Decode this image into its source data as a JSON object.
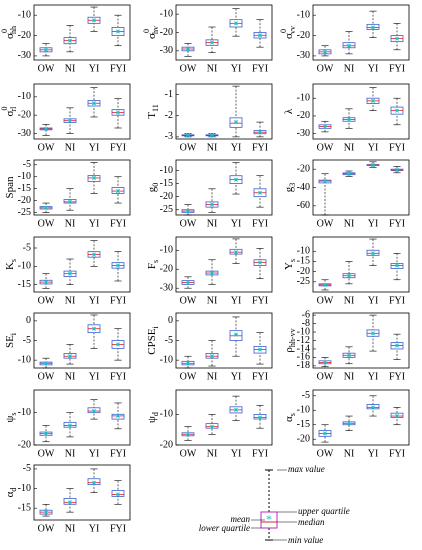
{
  "chart_data": [
    {
      "type": "box",
      "ylabel": {
        "base": "σ",
        "sup": "0",
        "sub": "hh"
      },
      "categories": [
        "OW",
        "NI",
        "YI",
        "FYI"
      ],
      "ylim": [
        -32,
        -5
      ],
      "yticks": [
        -30,
        -20,
        -10
      ],
      "min": [
        -30,
        -28,
        -18,
        -25
      ],
      "q1": [
        -28,
        -24,
        -14,
        -20
      ],
      "median": [
        -27,
        -22.5,
        -12.5,
        -18
      ],
      "q3": [
        -26,
        -21,
        -11,
        -16
      ],
      "max": [
        -24,
        -15,
        -6,
        -10
      ],
      "mean": [
        -27,
        -22.5,
        -12.5,
        -18
      ]
    },
    {
      "type": "box",
      "ylabel": {
        "base": "σ",
        "sup": "0",
        "sub": "hv"
      },
      "categories": [
        "OW",
        "NI",
        "YI",
        "FYI"
      ],
      "ylim": [
        -35,
        -5
      ],
      "yticks": [
        -30,
        -20,
        -10
      ],
      "min": [
        -33,
        -31,
        -22,
        -28
      ],
      "q1": [
        -30,
        -27,
        -17,
        -23
      ],
      "median": [
        -29,
        -25.5,
        -15,
        -21.5
      ],
      "q3": [
        -28,
        -24,
        -13,
        -20
      ],
      "max": [
        -26,
        -17,
        -7,
        -13
      ],
      "mean": [
        -29,
        -25.5,
        -15,
        -21.5
      ]
    },
    {
      "type": "box",
      "ylabel": {
        "base": "σ",
        "sup": "0",
        "sub": "vv"
      },
      "categories": [
        "OW",
        "NI",
        "YI",
        "FYI"
      ],
      "ylim": [
        -32,
        -5
      ],
      "yticks": [
        -30,
        -20,
        -10
      ],
      "min": [
        -30,
        -29,
        -21,
        -27
      ],
      "q1": [
        -29,
        -26,
        -17,
        -23
      ],
      "median": [
        -28,
        -25,
        -16,
        -21.5
      ],
      "q3": [
        -27,
        -23.5,
        -14.5,
        -20
      ],
      "max": [
        -25,
        -18,
        -8,
        -14
      ],
      "mean": [
        -28,
        -25,
        -16,
        -21.5
      ]
    },
    {
      "type": "box",
      "ylabel": {
        "base": "σ",
        "sup": "0",
        "sub": "rl"
      },
      "categories": [
        "OW",
        "NI",
        "YI",
        "FYI"
      ],
      "ylim": [
        -33,
        -3
      ],
      "yticks": [
        -30,
        -20,
        -10
      ],
      "min": [
        -31,
        -30,
        -21,
        -27
      ],
      "q1": [
        -28,
        -24,
        -15,
        -20
      ],
      "median": [
        -27.5,
        -23,
        -13.5,
        -18.5
      ],
      "q3": [
        -27,
        -22,
        -12,
        -17
      ],
      "max": [
        -25,
        -16,
        -5,
        -11
      ],
      "mean": [
        -27.5,
        -23,
        -13.5,
        -18.5
      ]
    },
    {
      "type": "box",
      "ylabel": {
        "base": "T",
        "sub": "11"
      },
      "categories": [
        "OW",
        "NI",
        "YI",
        "FYI"
      ],
      "ylim": [
        -3.1,
        -0.5
      ],
      "yticks": [
        -3,
        -2,
        -1
      ],
      "min": [
        -3,
        -3,
        -3,
        -3
      ],
      "q1": [
        -2.95,
        -2.95,
        -2.55,
        -2.85
      ],
      "median": [
        -2.93,
        -2.93,
        -2.35,
        -2.78
      ],
      "q3": [
        -2.9,
        -2.9,
        -2.1,
        -2.7
      ],
      "max": [
        -2.85,
        -2.85,
        -0.6,
        -2.3
      ],
      "mean": [
        -2.93,
        -2.93,
        -2.3,
        -2.78
      ]
    },
    {
      "type": "box",
      "ylabel": {
        "base": "λ"
      },
      "categories": [
        "OW",
        "NI",
        "YI",
        "FYI"
      ],
      "ylim": [
        -33,
        -2
      ],
      "yticks": [
        -30,
        -20,
        -10
      ],
      "min": [
        -29,
        -27,
        -17,
        -25
      ],
      "q1": [
        -27,
        -23,
        -13,
        -19
      ],
      "median": [
        -26,
        -22,
        -11.5,
        -17
      ],
      "q3": [
        -25,
        -21,
        -10,
        -15
      ],
      "max": [
        -23,
        -16,
        -4,
        -10
      ],
      "mean": [
        -26,
        -22,
        -11.5,
        -17
      ]
    },
    {
      "type": "box",
      "ylabel": {
        "base": "Span"
      },
      "categories": [
        "OW",
        "NI",
        "YI",
        "FYI"
      ],
      "ylim": [
        -26,
        -3
      ],
      "yticks": [
        -25,
        -20,
        -15,
        -10,
        -5
      ],
      "min": [
        -25,
        -24,
        -17,
        -21
      ],
      "q1": [
        -23.5,
        -21,
        -12,
        -17
      ],
      "median": [
        -23,
        -20.5,
        -10.5,
        -16
      ],
      "q3": [
        -22.5,
        -19.5,
        -9.5,
        -14.5
      ],
      "max": [
        -21,
        -15,
        -4,
        -10
      ],
      "mean": [
        -23,
        -20.5,
        -10.5,
        -16
      ]
    },
    {
      "type": "box",
      "ylabel": {
        "base": "g",
        "sub": "0"
      },
      "categories": [
        "OW",
        "NI",
        "YI",
        "FYI"
      ],
      "ylim": [
        -27,
        -6
      ],
      "yticks": [
        -25,
        -20,
        -15,
        -10
      ],
      "min": [
        -27,
        -26,
        -19,
        -24
      ],
      "q1": [
        -26,
        -24,
        -15,
        -20
      ],
      "median": [
        -25.5,
        -23,
        -13.5,
        -18.5
      ],
      "q3": [
        -25,
        -22,
        -12,
        -17
      ],
      "max": [
        -23,
        -17,
        -7,
        -12
      ],
      "mean": [
        -25.5,
        -23,
        -13.5,
        -18.5
      ]
    },
    {
      "type": "box",
      "ylabel": {
        "base": "g",
        "sub": "3"
      },
      "categories": [
        "OW",
        "NI",
        "YI",
        "FYI"
      ],
      "ylim": [
        -70,
        -10
      ],
      "yticks": [
        -60,
        -40,
        -20
      ],
      "min": [
        -70,
        -28,
        -18,
        -24
      ],
      "q1": [
        -35,
        -26,
        -16,
        -21.5
      ],
      "median": [
        -33,
        -25,
        -15.5,
        -21
      ],
      "q3": [
        -32,
        -24,
        -15,
        -20
      ],
      "max": [
        -25,
        -22,
        -12,
        -17
      ],
      "mean": [
        -33,
        -25,
        -15.5,
        -21
      ]
    },
    {
      "type": "box",
      "ylabel": {
        "base": "K",
        "sub": "s"
      },
      "categories": [
        "OW",
        "NI",
        "YI",
        "FYI"
      ],
      "ylim": [
        -17,
        -2
      ],
      "yticks": [
        -15,
        -10,
        -5
      ],
      "min": [
        -16,
        -15,
        -10,
        -14
      ],
      "q1": [
        -14.8,
        -12.8,
        -7.5,
        -10.5
      ],
      "median": [
        -14.3,
        -12,
        -6.8,
        -9.8
      ],
      "q3": [
        -13.8,
        -11.3,
        -6,
        -9
      ],
      "max": [
        -12,
        -8,
        -3,
        -6
      ],
      "mean": [
        -14.3,
        -12,
        -6.8,
        -9.8
      ]
    },
    {
      "type": "box",
      "ylabel": {
        "base": "F",
        "sub": "s"
      },
      "categories": [
        "OW",
        "NI",
        "YI",
        "FYI"
      ],
      "ylim": [
        -32,
        -3
      ],
      "yticks": [
        -30,
        -20,
        -10
      ],
      "min": [
        -30,
        -28,
        -17,
        -25
      ],
      "q1": [
        -28,
        -23,
        -12,
        -18
      ],
      "median": [
        -27,
        -22,
        -11,
        -16.5
      ],
      "q3": [
        -26,
        -21,
        -9.5,
        -15
      ],
      "max": [
        -24,
        -15,
        -4,
        -9
      ],
      "mean": [
        -27,
        -22,
        -11,
        -16.5
      ]
    },
    {
      "type": "box",
      "ylabel": {
        "base": "Y",
        "sub": "s"
      },
      "categories": [
        "OW",
        "NI",
        "YI",
        "FYI"
      ],
      "ylim": [
        -30,
        -3
      ],
      "yticks": [
        -25,
        -20,
        -15,
        -10
      ],
      "min": [
        -29,
        -26,
        -17,
        -24
      ],
      "q1": [
        -27,
        -23,
        -12,
        -18.5
      ],
      "median": [
        -26.5,
        -22,
        -11,
        -17
      ],
      "q3": [
        -26,
        -21,
        -9.5,
        -16
      ],
      "max": [
        -24,
        -15,
        -4,
        -11
      ],
      "mean": [
        -26.5,
        -22,
        -11,
        -17
      ]
    },
    {
      "type": "box",
      "ylabel": {
        "base": "SE",
        "sub": "i"
      },
      "categories": [
        "OW",
        "NI",
        "YI",
        "FYI"
      ],
      "ylim": [
        -12,
        2
      ],
      "yticks": [
        -10,
        -5,
        0
      ],
      "min": [
        -12,
        -11,
        -7,
        -10
      ],
      "q1": [
        -11.2,
        -9.5,
        -3,
        -7
      ],
      "median": [
        -10.8,
        -9,
        -2,
        -6
      ],
      "q3": [
        -10.5,
        -8.3,
        -1,
        -5
      ],
      "max": [
        -9.5,
        -6,
        1.5,
        -2
      ],
      "mean": [
        -10.8,
        -9,
        -2,
        -6
      ]
    },
    {
      "type": "box",
      "ylabel": {
        "base": "CPSE",
        "sub": "i"
      },
      "categories": [
        "OW",
        "NI",
        "YI",
        "FYI"
      ],
      "ylim": [
        -12,
        2
      ],
      "yticks": [
        -10,
        -5,
        0
      ],
      "min": [
        -12,
        -11.5,
        -9,
        -11
      ],
      "q1": [
        -11.2,
        -9.5,
        -5,
        -8.2
      ],
      "median": [
        -10.8,
        -9,
        -3.8,
        -7.3
      ],
      "q3": [
        -10.3,
        -8.3,
        -2.5,
        -6.5
      ],
      "max": [
        -9,
        -5,
        1,
        -3
      ],
      "mean": [
        -10.8,
        -9,
        -3.5,
        -7.3
      ]
    },
    {
      "type": "box",
      "ylabel": {
        "base": "ρ",
        "sub": "hh-vv"
      },
      "categories": [
        "OW",
        "NI",
        "YI",
        "FYI"
      ],
      "ylim": [
        -18.5,
        -5.5
      ],
      "yticks": [
        -18,
        -16,
        -14,
        -12,
        -10,
        -8,
        -6
      ],
      "min": [
        -18.2,
        -17.5,
        -14.5,
        -16.5
      ],
      "q1": [
        -17.5,
        -16,
        -11,
        -14
      ],
      "median": [
        -17.2,
        -15.5,
        -10.3,
        -13.2
      ],
      "q3": [
        -16.8,
        -15,
        -9.5,
        -12.5
      ],
      "max": [
        -16,
        -13.5,
        -6,
        -10.5
      ],
      "mean": [
        -17.2,
        -15.5,
        -10.3,
        -13.2
      ]
    },
    {
      "type": "box",
      "ylabel": {
        "base": "ψ",
        "sub": "s"
      },
      "categories": [
        "OW",
        "NI",
        "YI",
        "FYI"
      ],
      "ylim": [
        -20,
        -3
      ],
      "yticks": [
        -20,
        -10
      ],
      "min": [
        -19,
        -17.5,
        -12,
        -15
      ],
      "q1": [
        -17,
        -14.5,
        -10,
        -12
      ],
      "median": [
        -16.5,
        -14,
        -9.5,
        -11
      ],
      "q3": [
        -16,
        -13,
        -8.5,
        -10.5
      ],
      "max": [
        -14,
        -10,
        -6,
        -7
      ],
      "mean": [
        -16.5,
        -14,
        -9.5,
        -11
      ]
    },
    {
      "type": "box",
      "ylabel": {
        "base": "ψ",
        "sub": "d"
      },
      "categories": [
        "OW",
        "NI",
        "YI",
        "FYI"
      ],
      "ylim": [
        -20,
        -2
      ],
      "yticks": [
        -20,
        -10
      ],
      "min": [
        -18.5,
        -16.5,
        -12,
        -14.5
      ],
      "q1": [
        -17,
        -14.5,
        -9.5,
        -11.5
      ],
      "median": [
        -16.5,
        -14,
        -8.5,
        -11
      ],
      "q3": [
        -16,
        -13,
        -7.5,
        -10
      ],
      "max": [
        -14,
        -10,
        -4,
        -7
      ],
      "mean": [
        -16.5,
        -14,
        -8.5,
        -11
      ]
    },
    {
      "type": "box",
      "ylabel": {
        "base": "α",
        "sub": "s"
      },
      "categories": [
        "OW",
        "NI",
        "YI",
        "FYI"
      ],
      "ylim": [
        -22,
        -3
      ],
      "yticks": [
        -20,
        -15,
        -10,
        -5
      ],
      "min": [
        -21,
        -17,
        -12,
        -15
      ],
      "q1": [
        -19,
        -15,
        -9.5,
        -12.5
      ],
      "median": [
        -18,
        -14.5,
        -9,
        -12
      ],
      "q3": [
        -17,
        -14,
        -8,
        -11
      ],
      "max": [
        -15,
        -12,
        -5,
        -9
      ],
      "mean": [
        -18,
        -14.5,
        -9,
        -12
      ]
    },
    {
      "type": "box",
      "ylabel": {
        "base": "α",
        "sub": "d"
      },
      "categories": [
        "OW",
        "NI",
        "YI",
        "FYI"
      ],
      "ylim": [
        -18,
        -4
      ],
      "yticks": [
        -15,
        -10,
        -5
      ],
      "min": [
        -17,
        -16,
        -11,
        -14
      ],
      "q1": [
        -16.5,
        -14,
        -9,
        -12
      ],
      "median": [
        -16,
        -13.5,
        -8.5,
        -11.5
      ],
      "q3": [
        -15.5,
        -12.5,
        -7.5,
        -10.5
      ],
      "max": [
        -14,
        -10,
        -5,
        -8
      ],
      "mean": [
        -16,
        -13.5,
        -8.5,
        -11.5
      ]
    }
  ],
  "legend": {
    "max": "max value",
    "upper": "upper quartile",
    "median": "median",
    "mean": "mean",
    "lower": "lower quartile",
    "min": "min value"
  }
}
